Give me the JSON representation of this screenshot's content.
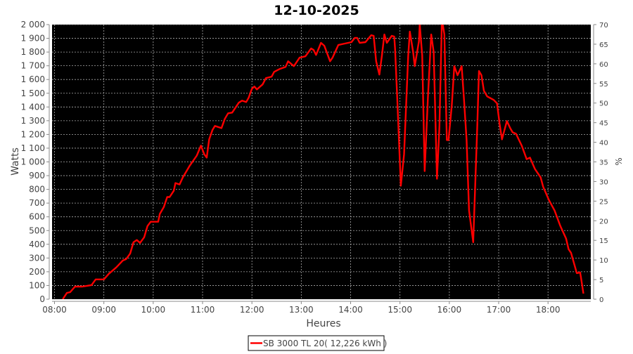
{
  "chart_data": {
    "type": "line",
    "title": "12-10-2025",
    "xlabel": "Heures",
    "ylabel": "Watts",
    "y2label": "%",
    "xlim": [
      "07:57",
      "18:52"
    ],
    "ylim": [
      0,
      2000
    ],
    "y2lim": [
      0,
      70
    ],
    "grid": true,
    "legend_placement": "bottom",
    "background": "#000000",
    "x_ticks": [
      "08:00",
      "09:00",
      "10:00",
      "11:00",
      "12:00",
      "13:00",
      "14:00",
      "15:00",
      "16:00",
      "17:00",
      "18:00"
    ],
    "y_ticks": [
      "0",
      "100",
      "200",
      "300",
      "400",
      "500",
      "600",
      "700",
      "800",
      "900",
      "1 000",
      "1 100",
      "1 200",
      "1 300",
      "1 400",
      "1 500",
      "1 600",
      "1 700",
      "1 800",
      "1 900",
      "2 000"
    ],
    "y2_ticks": [
      "0",
      "5",
      "10",
      "15",
      "20",
      "25",
      "30",
      "35",
      "40",
      "45",
      "50",
      "55",
      "60",
      "65",
      "70"
    ],
    "series": [
      {
        "name": "SB 3000 TL 20( 12,226 kWh )",
        "color": "#ff0000",
        "x": [
          "08:10",
          "08:15",
          "08:19",
          "08:25",
          "08:34",
          "08:45",
          "08:50",
          "09:00",
          "09:06",
          "09:15",
          "09:23",
          "09:27",
          "09:32",
          "09:36",
          "09:40",
          "09:44",
          "09:49",
          "09:53",
          "09:57",
          "10:06",
          "10:08",
          "10:13",
          "10:17",
          "10:20",
          "10:25",
          "10:27",
          "10:32",
          "10:36",
          "10:44",
          "10:53",
          "10:58",
          "11:02",
          "11:05",
          "11:08",
          "11:12",
          "11:15",
          "11:23",
          "11:27",
          "11:31",
          "11:36",
          "11:44",
          "11:48",
          "11:53",
          "11:56",
          "12:00",
          "12:03",
          "12:06",
          "12:13",
          "12:17",
          "12:24",
          "12:27",
          "12:34",
          "12:41",
          "12:44",
          "12:51",
          "12:58",
          "13:05",
          "13:12",
          "13:15",
          "13:18",
          "13:24",
          "13:28",
          "13:35",
          "13:38",
          "13:45",
          "13:53",
          "14:01",
          "14:05",
          "14:08",
          "14:11",
          "14:18",
          "14:25",
          "14:28",
          "14:31",
          "14:35",
          "14:38",
          "14:41",
          "14:44",
          "14:50",
          "14:53",
          "14:54",
          "14:57",
          "15:01",
          "15:05",
          "15:10",
          "15:12",
          "15:16",
          "15:18",
          "15:23",
          "15:24",
          "15:27",
          "15:30",
          "15:34",
          "15:38",
          "15:41",
          "15:45",
          "15:48",
          "15:51",
          "15:54",
          "15:57",
          "15:59",
          "16:03",
          "16:06",
          "16:10",
          "16:15",
          "16:18",
          "16:21",
          "16:24",
          "16:29",
          "16:31",
          "16:34",
          "16:36",
          "16:39",
          "16:42",
          "16:46",
          "16:54",
          "16:58",
          "17:01",
          "17:04",
          "17:07",
          "17:10",
          "17:14",
          "17:17",
          "17:21",
          "17:28",
          "17:34",
          "17:38",
          "17:44",
          "17:51",
          "17:54",
          "18:01",
          "18:08",
          "18:15",
          "18:22",
          "18:25",
          "18:28",
          "18:35",
          "18:39",
          "18:40",
          "18:43"
        ],
        "values": [
          0,
          46,
          51,
          92,
          92,
          103,
          144,
          144,
          185,
          231,
          282,
          292,
          333,
          415,
          431,
          410,
          451,
          533,
          564,
          564,
          621,
          672,
          744,
          744,
          790,
          846,
          836,
          887,
          969,
          1046,
          1118,
          1056,
          1031,
          1164,
          1231,
          1262,
          1246,
          1313,
          1354,
          1359,
          1431,
          1446,
          1436,
          1467,
          1533,
          1549,
          1528,
          1564,
          1610,
          1621,
          1656,
          1677,
          1692,
          1733,
          1697,
          1759,
          1769,
          1826,
          1815,
          1779,
          1867,
          1846,
          1733,
          1759,
          1851,
          1862,
          1872,
          1903,
          1903,
          1867,
          1872,
          1923,
          1918,
          1733,
          1636,
          1774,
          1928,
          1867,
          1918,
          1913,
          1826,
          1415,
          826,
          1056,
          1774,
          1949,
          1800,
          1697,
          1877,
          2000,
          1774,
          933,
          1467,
          1928,
          1800,
          877,
          1262,
          2040,
          1928,
          1159,
          1159,
          1415,
          1697,
          1631,
          1697,
          1441,
          1159,
          646,
          415,
          749,
          1262,
          1662,
          1631,
          1518,
          1477,
          1451,
          1426,
          1282,
          1164,
          1231,
          1297,
          1246,
          1215,
          1205,
          1118,
          1020,
          1031,
          949,
          887,
          820,
          723,
          646,
          533,
          441,
          364,
          338,
          190,
          195,
          159,
          41
        ]
      }
    ]
  }
}
